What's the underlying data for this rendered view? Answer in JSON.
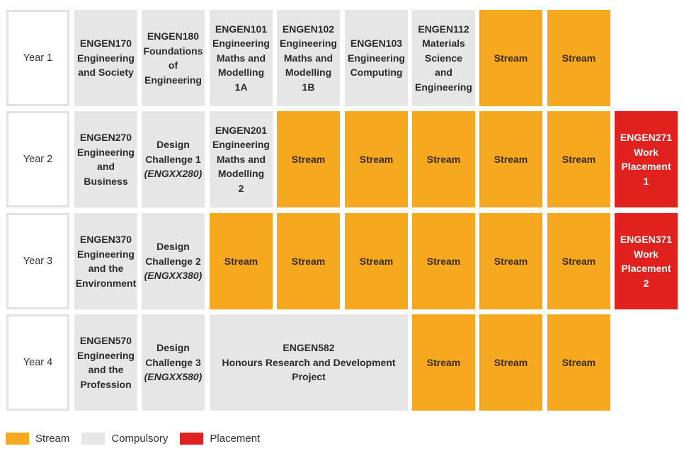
{
  "colors": {
    "stream": "#f6a81e",
    "compulsory": "#e6e6e6",
    "placement": "#e0211e",
    "year_border": "#e2e2e2"
  },
  "rows": [
    {
      "year": "Year 1",
      "cells": [
        {
          "kind": "compulsory",
          "text": "ENGEN170\nEngineering\nand Society"
        },
        {
          "kind": "compulsory",
          "text": "ENGEN180\nFoundations\nof\nEngineering"
        },
        {
          "kind": "compulsory",
          "text": "ENGEN101\nEngineering\nMaths and\nModelling\n1A"
        },
        {
          "kind": "compulsory",
          "text": "ENGEN102\nEngineering\nMaths and\nModelling\n1B"
        },
        {
          "kind": "compulsory",
          "text": "ENGEN103\nEngineering\nComputing"
        },
        {
          "kind": "compulsory",
          "text": "ENGEN112\nMaterials\nScience\nand\nEngineering"
        },
        {
          "kind": "stream",
          "text": "Stream"
        },
        {
          "kind": "stream",
          "text": "Stream"
        }
      ]
    },
    {
      "year": "Year 2",
      "cells": [
        {
          "kind": "compulsory",
          "text": "ENGEN270\nEngineering\nand\nBusiness"
        },
        {
          "kind": "compulsory",
          "text": "Design\nChallenge 1",
          "sub": "(ENGXX280)"
        },
        {
          "kind": "compulsory",
          "text": "ENGEN201\nEngineering\nMaths and\nModelling\n2"
        },
        {
          "kind": "stream",
          "text": "Stream"
        },
        {
          "kind": "stream",
          "text": "Stream"
        },
        {
          "kind": "stream",
          "text": "Stream"
        },
        {
          "kind": "stream",
          "text": "Stream"
        },
        {
          "kind": "stream",
          "text": "Stream"
        },
        {
          "kind": "placement",
          "text": "ENGEN271\nWork\nPlacement\n1"
        }
      ]
    },
    {
      "year": "Year 3",
      "cells": [
        {
          "kind": "compulsory",
          "text": "ENGEN370\nEngineering\nand the\nEnvironment"
        },
        {
          "kind": "compulsory",
          "text": "Design\nChallenge 2",
          "sub": "(ENGXX380)"
        },
        {
          "kind": "stream",
          "text": "Stream"
        },
        {
          "kind": "stream",
          "text": "Stream"
        },
        {
          "kind": "stream",
          "text": "Stream"
        },
        {
          "kind": "stream",
          "text": "Stream"
        },
        {
          "kind": "stream",
          "text": "Stream"
        },
        {
          "kind": "stream",
          "text": "Stream"
        },
        {
          "kind": "placement",
          "text": "ENGEN371\nWork\nPlacement\n2"
        }
      ]
    },
    {
      "year": "Year 4",
      "cells": [
        {
          "kind": "compulsory",
          "text": "ENGEN570\nEngineering\nand the\nProfession"
        },
        {
          "kind": "compulsory",
          "text": "Design\nChallenge 3",
          "sub": "(ENGXX580)"
        },
        {
          "kind": "compulsory",
          "text": "ENGEN582\nHonours Research and Development\nProject"
        },
        {
          "kind": "stream",
          "text": "Stream"
        },
        {
          "kind": "stream",
          "text": "Stream"
        },
        {
          "kind": "stream",
          "text": "Stream"
        }
      ]
    }
  ],
  "legend": [
    {
      "kind": "stream",
      "label": "Stream"
    },
    {
      "kind": "compulsory",
      "label": "Compulsory"
    },
    {
      "kind": "placement",
      "label": "Placement"
    }
  ]
}
